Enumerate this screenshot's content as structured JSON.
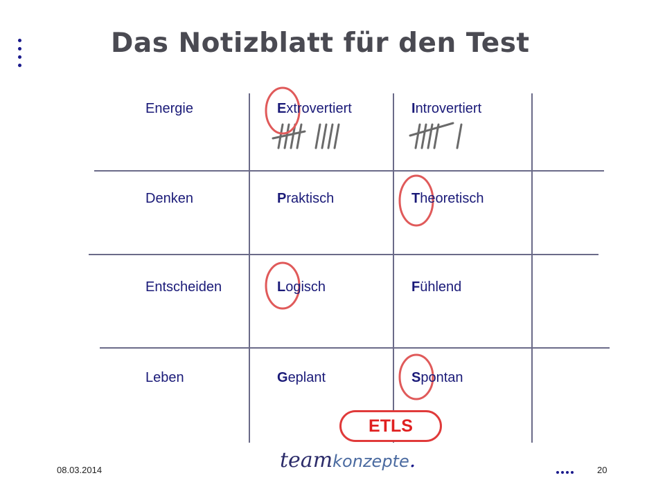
{
  "title": "Das Notizblatt für den Test",
  "rows": [
    {
      "label": "Energie",
      "a_first": "E",
      "a_rest": "xtrovertiert",
      "b_first": "I",
      "b_rest": "ntrovertiert"
    },
    {
      "label": "Denken",
      "a_first": "P",
      "a_rest": "raktisch",
      "b_first": "T",
      "b_rest": "heoretisch"
    },
    {
      "label": "Entscheiden",
      "a_first": "L",
      "a_rest": "ogisch",
      "b_first": "F",
      "b_rest": "ühlend"
    },
    {
      "label": "Leben",
      "a_first": "G",
      "a_rest": "eplant",
      "b_first": "S",
      "b_rest": "pontan"
    }
  ],
  "tally": {
    "extrovertiert": 9,
    "introvertiert": 6
  },
  "result": "ETLS",
  "footer": {
    "date": "08.03.2014",
    "page": "20"
  },
  "logo": {
    "main": "team",
    "sub": "konzepte",
    "dot": "."
  },
  "colors": {
    "accent": "#e03a3a",
    "text": "#1a1a78",
    "title": "#4a4a52",
    "lines": "#6a6a88"
  }
}
